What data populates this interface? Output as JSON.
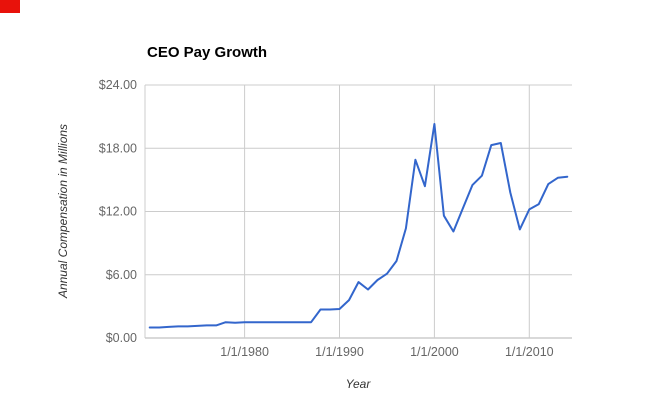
{
  "window": {
    "background": "#ffffff"
  },
  "corner_marker": {
    "color": "#e8120b"
  },
  "chart_data": {
    "type": "line",
    "title": "CEO Pay Growth",
    "xlabel": "Year",
    "ylabel": "Annual Compensation in Millions",
    "legend": "none",
    "grid": true,
    "line_color": "#3366cc",
    "grid_color": "#cccccc",
    "baseline_color": "#b3b3b3",
    "tick_label_color": "#666666",
    "axis_title_color": "#333333",
    "title_color": "#000000",
    "xlim": [
      1969.5,
      2014.5
    ],
    "ylim": [
      0,
      24
    ],
    "x_ticks": [
      {
        "label": "1/1/1980",
        "value": 1980
      },
      {
        "label": "1/1/1990",
        "value": 1990
      },
      {
        "label": "1/1/2000",
        "value": 2000
      },
      {
        "label": "1/1/2010",
        "value": 2010
      }
    ],
    "y_ticks": [
      {
        "label": "$0.00",
        "value": 0
      },
      {
        "label": "$6.00",
        "value": 6
      },
      {
        "label": "$12.00",
        "value": 12
      },
      {
        "label": "$18.00",
        "value": 18
      },
      {
        "label": "$24.00",
        "value": 24
      }
    ],
    "x": [
      1970,
      1971,
      1972,
      1973,
      1974,
      1975,
      1976,
      1977,
      1978,
      1979,
      1980,
      1981,
      1982,
      1983,
      1984,
      1985,
      1986,
      1987,
      1988,
      1989,
      1990,
      1991,
      1992,
      1993,
      1994,
      1995,
      1996,
      1997,
      1998,
      1999,
      2000,
      2001,
      2002,
      2003,
      2004,
      2005,
      2006,
      2007,
      2008,
      2009,
      2010,
      2011,
      2012,
      2013,
      2014
    ],
    "y": [
      1.0,
      1.0,
      1.05,
      1.1,
      1.1,
      1.15,
      1.2,
      1.2,
      1.5,
      1.45,
      1.5,
      1.5,
      1.5,
      1.5,
      1.5,
      1.5,
      1.5,
      1.5,
      2.7,
      2.7,
      2.75,
      3.6,
      5.3,
      4.6,
      5.5,
      6.1,
      7.3,
      10.4,
      16.9,
      14.4,
      20.3,
      11.6,
      10.1,
      12.3,
      14.5,
      15.4,
      18.3,
      18.5,
      13.8,
      10.3,
      12.2,
      12.7,
      14.6,
      15.2,
      15.3
    ]
  }
}
